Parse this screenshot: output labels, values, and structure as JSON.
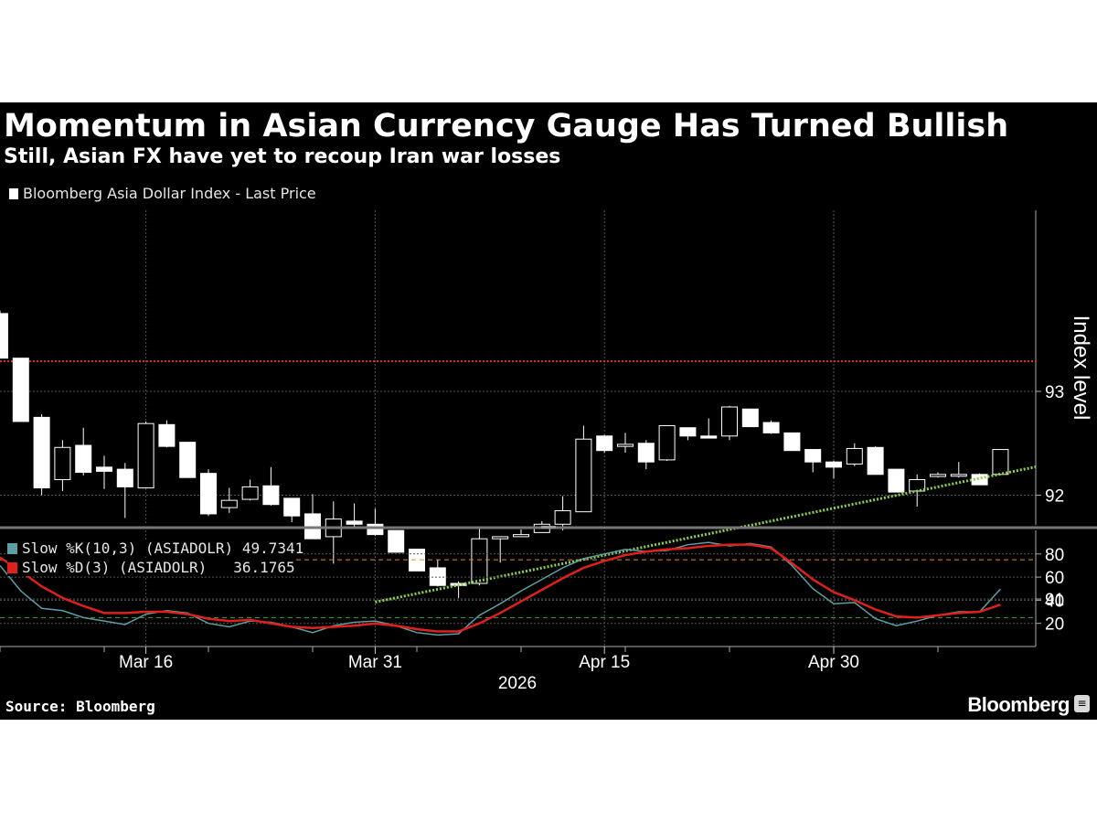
{
  "header": {
    "title": "Momentum in Asian Currency Gauge Has Turned Bullish",
    "subtitle": "Still, Asian FX have yet to recoup Iran war losses"
  },
  "footer": {
    "source": "Source: Bloomberg",
    "brand": "Bloomberg"
  },
  "colors": {
    "background": "#000000",
    "candle": "#ffffff",
    "resistance_line": "#e0352b",
    "trend_line": "#8fd14f",
    "slow_k": "#5b9ea6",
    "slow_d": "#e0201b",
    "overbought_line": "#e08a2c",
    "oversold_line": "#3fa34d"
  },
  "chart_data": [
    {
      "type": "candlestick",
      "legend": "Bloomberg Asia Dollar Index - Last Price",
      "ylabel": "Index level",
      "y_ticks": [
        91,
        92,
        93
      ],
      "ylim": [
        90.7,
        93.8
      ],
      "x_ticks": [
        "Mar 16",
        "Mar 31",
        "Apr 15",
        "Apr 30"
      ],
      "year_label": "2026",
      "resistance_level": 93.29,
      "trend_line": {
        "from": [
          "Mar 31",
          90.97
        ],
        "to": [
          "May 7",
          92.08
        ]
      },
      "candles": [
        {
          "date": "Mar 5",
          "open": 93.75,
          "high": 93.78,
          "low": 93.32,
          "close": 93.32
        },
        {
          "date": "Mar 6",
          "open": 93.32,
          "high": 93.32,
          "low": 92.71,
          "close": 92.71
        },
        {
          "date": "Mar 9",
          "open": 92.75,
          "high": 92.78,
          "low": 92.0,
          "close": 92.07
        },
        {
          "date": "Mar 10",
          "open": 92.15,
          "high": 92.53,
          "low": 92.04,
          "close": 92.46
        },
        {
          "date": "Mar 11",
          "open": 92.48,
          "high": 92.65,
          "low": 92.19,
          "close": 92.22
        },
        {
          "date": "Mar 12",
          "open": 92.27,
          "high": 92.38,
          "low": 92.06,
          "close": 92.23
        },
        {
          "date": "Mar 13",
          "open": 92.25,
          "high": 92.31,
          "low": 91.78,
          "close": 92.08
        },
        {
          "date": "Mar 16",
          "open": 92.07,
          "high": 92.71,
          "low": 92.07,
          "close": 92.69
        },
        {
          "date": "Mar 17",
          "open": 92.68,
          "high": 92.72,
          "low": 92.46,
          "close": 92.47
        },
        {
          "date": "Mar 18",
          "open": 92.51,
          "high": 92.51,
          "low": 92.17,
          "close": 92.17
        },
        {
          "date": "Mar 19",
          "open": 92.21,
          "high": 92.25,
          "low": 91.8,
          "close": 91.82
        },
        {
          "date": "Mar 20",
          "open": 91.88,
          "high": 92.07,
          "low": 91.83,
          "close": 91.95
        },
        {
          "date": "Mar 23",
          "open": 91.96,
          "high": 92.15,
          "low": 91.95,
          "close": 92.08
        },
        {
          "date": "Mar 24",
          "open": 92.09,
          "high": 92.27,
          "low": 91.9,
          "close": 91.91
        },
        {
          "date": "Mar 25",
          "open": 91.97,
          "high": 91.97,
          "low": 91.74,
          "close": 91.8
        },
        {
          "date": "Mar 26",
          "open": 91.82,
          "high": 92.01,
          "low": 91.59,
          "close": 91.58
        },
        {
          "date": "Mar 27",
          "open": 91.6,
          "high": 91.94,
          "low": 91.34,
          "close": 91.77
        },
        {
          "date": "Mar 30",
          "open": 91.75,
          "high": 91.92,
          "low": 91.69,
          "close": 91.72
        },
        {
          "date": "Mar 31",
          "open": 91.72,
          "high": 91.87,
          "low": 91.61,
          "close": 91.62
        },
        {
          "date": "Apr 1",
          "open": 91.66,
          "high": 91.66,
          "low": 91.45,
          "close": 91.45
        },
        {
          "date": "Apr 2",
          "open": 91.48,
          "high": 91.48,
          "low": 91.27,
          "close": 91.27
        },
        {
          "date": "Apr 3",
          "open": 91.3,
          "high": 91.38,
          "low": 91.12,
          "close": 91.13
        },
        {
          "date": "Apr 6",
          "open": 91.15,
          "high": 91.17,
          "low": 91.01,
          "close": 91.13
        },
        {
          "date": "Apr 7",
          "open": 91.15,
          "high": 91.69,
          "low": 91.13,
          "close": 91.58
        },
        {
          "date": "Apr 8",
          "open": 91.58,
          "high": 91.6,
          "low": 91.35,
          "close": 91.6
        },
        {
          "date": "Apr 9",
          "open": 91.6,
          "high": 91.67,
          "low": 91.6,
          "close": 91.62
        },
        {
          "date": "Apr 10",
          "open": 91.64,
          "high": 91.75,
          "low": 91.65,
          "close": 91.72
        },
        {
          "date": "Apr 13",
          "open": 91.72,
          "high": 91.99,
          "low": 91.66,
          "close": 91.85
        },
        {
          "date": "Apr 14",
          "open": 91.84,
          "high": 92.67,
          "low": 91.84,
          "close": 92.54
        },
        {
          "date": "Apr 15",
          "open": 92.57,
          "high": 92.58,
          "low": 92.41,
          "close": 92.43
        },
        {
          "date": "Apr 16",
          "open": 92.47,
          "high": 92.6,
          "low": 92.41,
          "close": 92.49
        },
        {
          "date": "Apr 17",
          "open": 92.5,
          "high": 92.53,
          "low": 92.25,
          "close": 92.32
        },
        {
          "date": "Apr 20",
          "open": 92.34,
          "high": 92.67,
          "low": 92.33,
          "close": 92.67
        },
        {
          "date": "Apr 21",
          "open": 92.65,
          "high": 92.65,
          "low": 92.53,
          "close": 92.57
        },
        {
          "date": "Apr 22",
          "open": 92.57,
          "high": 92.74,
          "low": 92.55,
          "close": 92.55
        },
        {
          "date": "Apr 23",
          "open": 92.57,
          "high": 92.86,
          "low": 92.53,
          "close": 92.85
        },
        {
          "date": "Apr 24",
          "open": 92.83,
          "high": 92.83,
          "low": 92.66,
          "close": 92.66
        },
        {
          "date": "Apr 27",
          "open": 92.7,
          "high": 92.72,
          "low": 92.59,
          "close": 92.6
        },
        {
          "date": "Apr 28",
          "open": 92.6,
          "high": 92.6,
          "low": 92.43,
          "close": 92.43
        },
        {
          "date": "Apr 29",
          "open": 92.44,
          "high": 92.44,
          "low": 92.22,
          "close": 92.32
        },
        {
          "date": "Apr 30",
          "open": 92.32,
          "high": 92.33,
          "low": 92.16,
          "close": 92.27
        },
        {
          "date": "May 1",
          "open": 92.3,
          "high": 92.5,
          "low": 92.28,
          "close": 92.45
        },
        {
          "date": "May 4",
          "open": 92.46,
          "high": 92.47,
          "low": 92.2,
          "close": 92.2
        },
        {
          "date": "May 5",
          "open": 92.25,
          "high": 92.25,
          "low": 92.03,
          "close": 92.03
        },
        {
          "date": "May 6",
          "open": 92.04,
          "high": 92.2,
          "low": 91.89,
          "close": 92.15
        },
        {
          "date": "May 7",
          "open": 92.18,
          "high": 92.22,
          "low": 92.17,
          "close": 92.2
        },
        {
          "date": "May 8",
          "open": 92.2,
          "high": 92.32,
          "low": 92.17,
          "close": 92.2
        },
        {
          "date": "May 11",
          "open": 92.2,
          "high": 92.21,
          "low": 92.1,
          "close": 92.1
        },
        {
          "date": "May 12",
          "open": 92.2,
          "high": 92.44,
          "low": 92.2,
          "close": 92.44
        }
      ]
    },
    {
      "type": "line",
      "y_ticks": [
        20,
        40,
        60,
        80
      ],
      "ylim": [
        0,
        100
      ],
      "overbought": 75,
      "oversold": 25,
      "series": [
        {
          "name": "Slow %K(10,3) (ASIADOLR)",
          "last": "49.7341",
          "values": [
            70,
            48,
            33,
            31,
            25,
            22,
            19,
            28,
            31,
            29,
            20,
            17,
            22,
            21,
            17,
            12,
            18,
            21,
            22,
            18,
            12,
            10,
            11,
            27,
            37,
            48,
            58,
            68,
            76,
            80,
            84,
            82,
            83,
            88,
            90,
            87,
            89,
            86,
            70,
            50,
            37,
            38,
            24,
            18,
            22,
            27,
            30,
            30,
            49.7341
          ]
        },
        {
          "name": "Slow %D(3) (ASIADOLR)",
          "last": "36.1765",
          "values": [
            77,
            65,
            52,
            42,
            35,
            29,
            29,
            30,
            30,
            28,
            24,
            22,
            23,
            20,
            17,
            16,
            17,
            18,
            20,
            18,
            15,
            13,
            13,
            20,
            29,
            39,
            49,
            59,
            68,
            74,
            79,
            82,
            84,
            85,
            87,
            88,
            88,
            85,
            72,
            58,
            47,
            40,
            32,
            26,
            25,
            27,
            29,
            30,
            36.1765
          ]
        }
      ]
    }
  ]
}
